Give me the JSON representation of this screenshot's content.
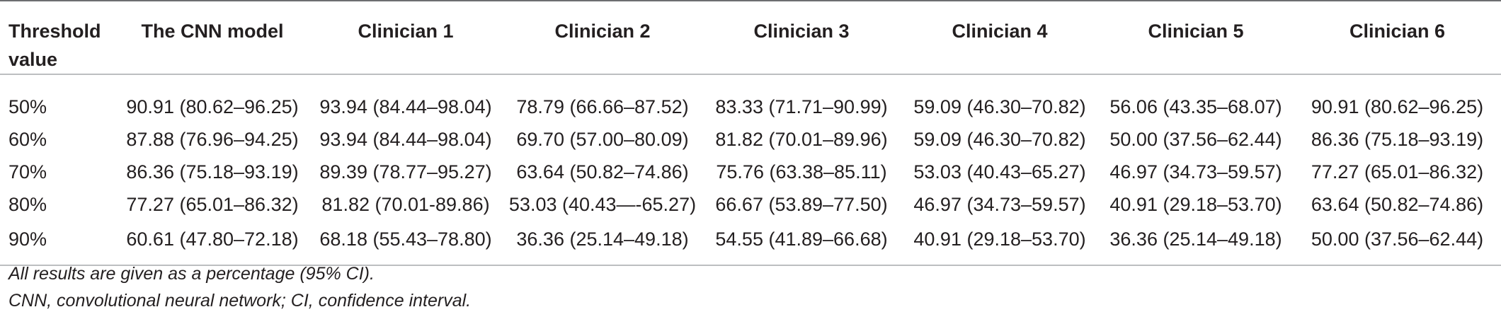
{
  "table": {
    "headers": [
      "Threshold value",
      "The CNN model",
      "Clinician 1",
      "Clinician 2",
      "Clinician 3",
      "Clinician 4",
      "Clinician 5",
      "Clinician 6"
    ],
    "rows": [
      [
        "50%",
        "90.91 (80.62–96.25)",
        "93.94 (84.44–98.04)",
        "78.79 (66.66–87.52)",
        "83.33 (71.71–90.99)",
        "59.09 (46.30–70.82)",
        "56.06 (43.35–68.07)",
        "90.91 (80.62–96.25)"
      ],
      [
        "60%",
        "87.88 (76.96–94.25)",
        "93.94 (84.44–98.04)",
        "69.70 (57.00–80.09)",
        "81.82 (70.01–89.96)",
        "59.09 (46.30–70.82)",
        "50.00 (37.56–62.44)",
        "86.36 (75.18–93.19)"
      ],
      [
        "70%",
        "86.36 (75.18–93.19)",
        "89.39 (78.77–95.27)",
        "63.64 (50.82–74.86)",
        "75.76 (63.38–85.11)",
        "53.03 (40.43–65.27)",
        "46.97 (34.73–59.57)",
        "77.27 (65.01–86.32)"
      ],
      [
        "80%",
        "77.27 (65.01–86.32)",
        "81.82 (70.01-89.86)",
        "53.03 (40.43—-65.27)",
        "66.67 (53.89–77.50)",
        "46.97 (34.73–59.57)",
        "40.91 (29.18–53.70)",
        "63.64 (50.82–74.86)"
      ],
      [
        "90%",
        "60.61 (47.80–72.18)",
        "68.18 (55.43–78.80)",
        "36.36 (25.14–49.18)",
        "54.55 (41.89–66.68)",
        "40.91 (29.18–53.70)",
        "36.36 (25.14–49.18)",
        "50.00 (37.56–62.44)"
      ]
    ]
  },
  "notes": {
    "line1": "All results are given as a percentage (95% CI).",
    "line2": "CNN, convolutional neural network; CI, confidence interval."
  }
}
